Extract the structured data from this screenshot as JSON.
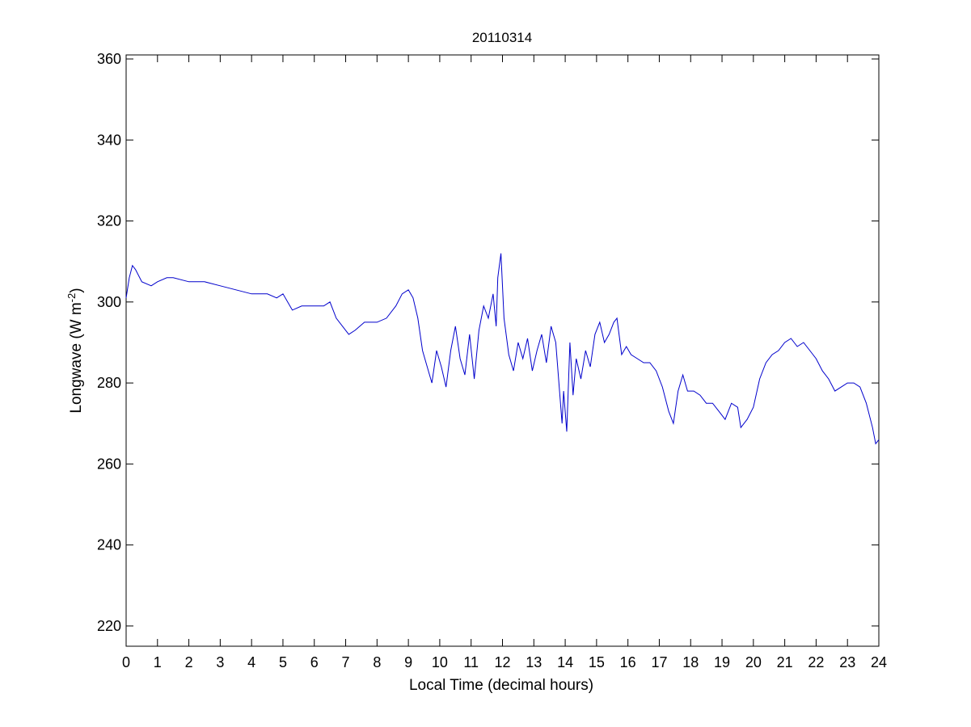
{
  "chart_data": {
    "type": "line",
    "title": "20110314",
    "xlabel": "Local Time (decimal hours)",
    "ylabel": "Longwave (W m",
    "ylabel_superscript": "-2",
    "ylabel_suffix": ")",
    "xlim": [
      0,
      24
    ],
    "ylim": [
      215,
      361
    ],
    "xticks": [
      0,
      1,
      2,
      3,
      4,
      5,
      6,
      7,
      8,
      9,
      10,
      11,
      12,
      13,
      14,
      15,
      16,
      17,
      18,
      19,
      20,
      21,
      22,
      23,
      24
    ],
    "yticks": [
      220,
      240,
      260,
      280,
      300,
      320,
      340,
      360
    ],
    "grid": false,
    "line_color": "#0000cc",
    "series": [
      {
        "x": [
          0,
          0.1,
          0.2,
          0.3,
          0.5,
          0.8,
          1.0,
          1.3,
          1.5,
          2.0,
          2.5,
          3.0,
          3.5,
          4.0,
          4.5,
          4.8,
          5.0,
          5.3,
          5.6,
          6.0,
          6.3,
          6.5,
          6.7,
          7.0,
          7.1,
          7.3,
          7.6,
          8.0,
          8.3,
          8.6,
          8.8,
          9.0,
          9.15,
          9.3,
          9.45,
          9.6,
          9.75,
          9.9,
          10.05,
          10.2,
          10.35,
          10.5,
          10.65,
          10.8,
          10.95,
          11.1,
          11.25,
          11.4,
          11.55,
          11.7,
          11.8,
          11.85,
          11.95,
          12.05,
          12.2,
          12.35,
          12.5,
          12.65,
          12.8,
          12.95,
          13.1,
          13.25,
          13.4,
          13.55,
          13.7,
          13.8,
          13.9,
          13.95,
          14.05,
          14.15,
          14.25,
          14.35,
          14.5,
          14.65,
          14.8,
          14.95,
          15.1,
          15.25,
          15.4,
          15.55,
          15.65,
          15.8,
          15.95,
          16.1,
          16.3,
          16.5,
          16.7,
          16.9,
          17.1,
          17.3,
          17.45,
          17.6,
          17.75,
          17.9,
          18.1,
          18.3,
          18.5,
          18.7,
          18.9,
          19.1,
          19.3,
          19.5,
          19.6,
          19.8,
          20.0,
          20.2,
          20.4,
          20.6,
          20.8,
          21.0,
          21.2,
          21.4,
          21.6,
          21.8,
          22.0,
          22.2,
          22.4,
          22.6,
          22.8,
          23.0,
          23.2,
          23.4,
          23.6,
          23.8,
          23.9,
          24.0
        ],
        "y": [
          301,
          306,
          309,
          308,
          305,
          304,
          305,
          306,
          306,
          305,
          305,
          304,
          303,
          302,
          302,
          301,
          302,
          298,
          299,
          299,
          299,
          300,
          296,
          293,
          292,
          293,
          295,
          295,
          296,
          299,
          302,
          303,
          301,
          296,
          288,
          284,
          280,
          288,
          284,
          279,
          288,
          294,
          286,
          282,
          292,
          281,
          293,
          299,
          296,
          302,
          294,
          306,
          312,
          296,
          287,
          283,
          290,
          286,
          291,
          283,
          288,
          292,
          285,
          294,
          290,
          280,
          270,
          278,
          268,
          290,
          277,
          286,
          281,
          288,
          284,
          292,
          295,
          290,
          292,
          295,
          296,
          287,
          289,
          287,
          286,
          285,
          285,
          283,
          279,
          273,
          270,
          278,
          282,
          278,
          278,
          277,
          275,
          275,
          273,
          271,
          275,
          274,
          269,
          271,
          274,
          281,
          285,
          287,
          288,
          290,
          291,
          289,
          290,
          288,
          286,
          283,
          281,
          278,
          279,
          280,
          280,
          279,
          275,
          269,
          265,
          266
        ]
      }
    ]
  }
}
